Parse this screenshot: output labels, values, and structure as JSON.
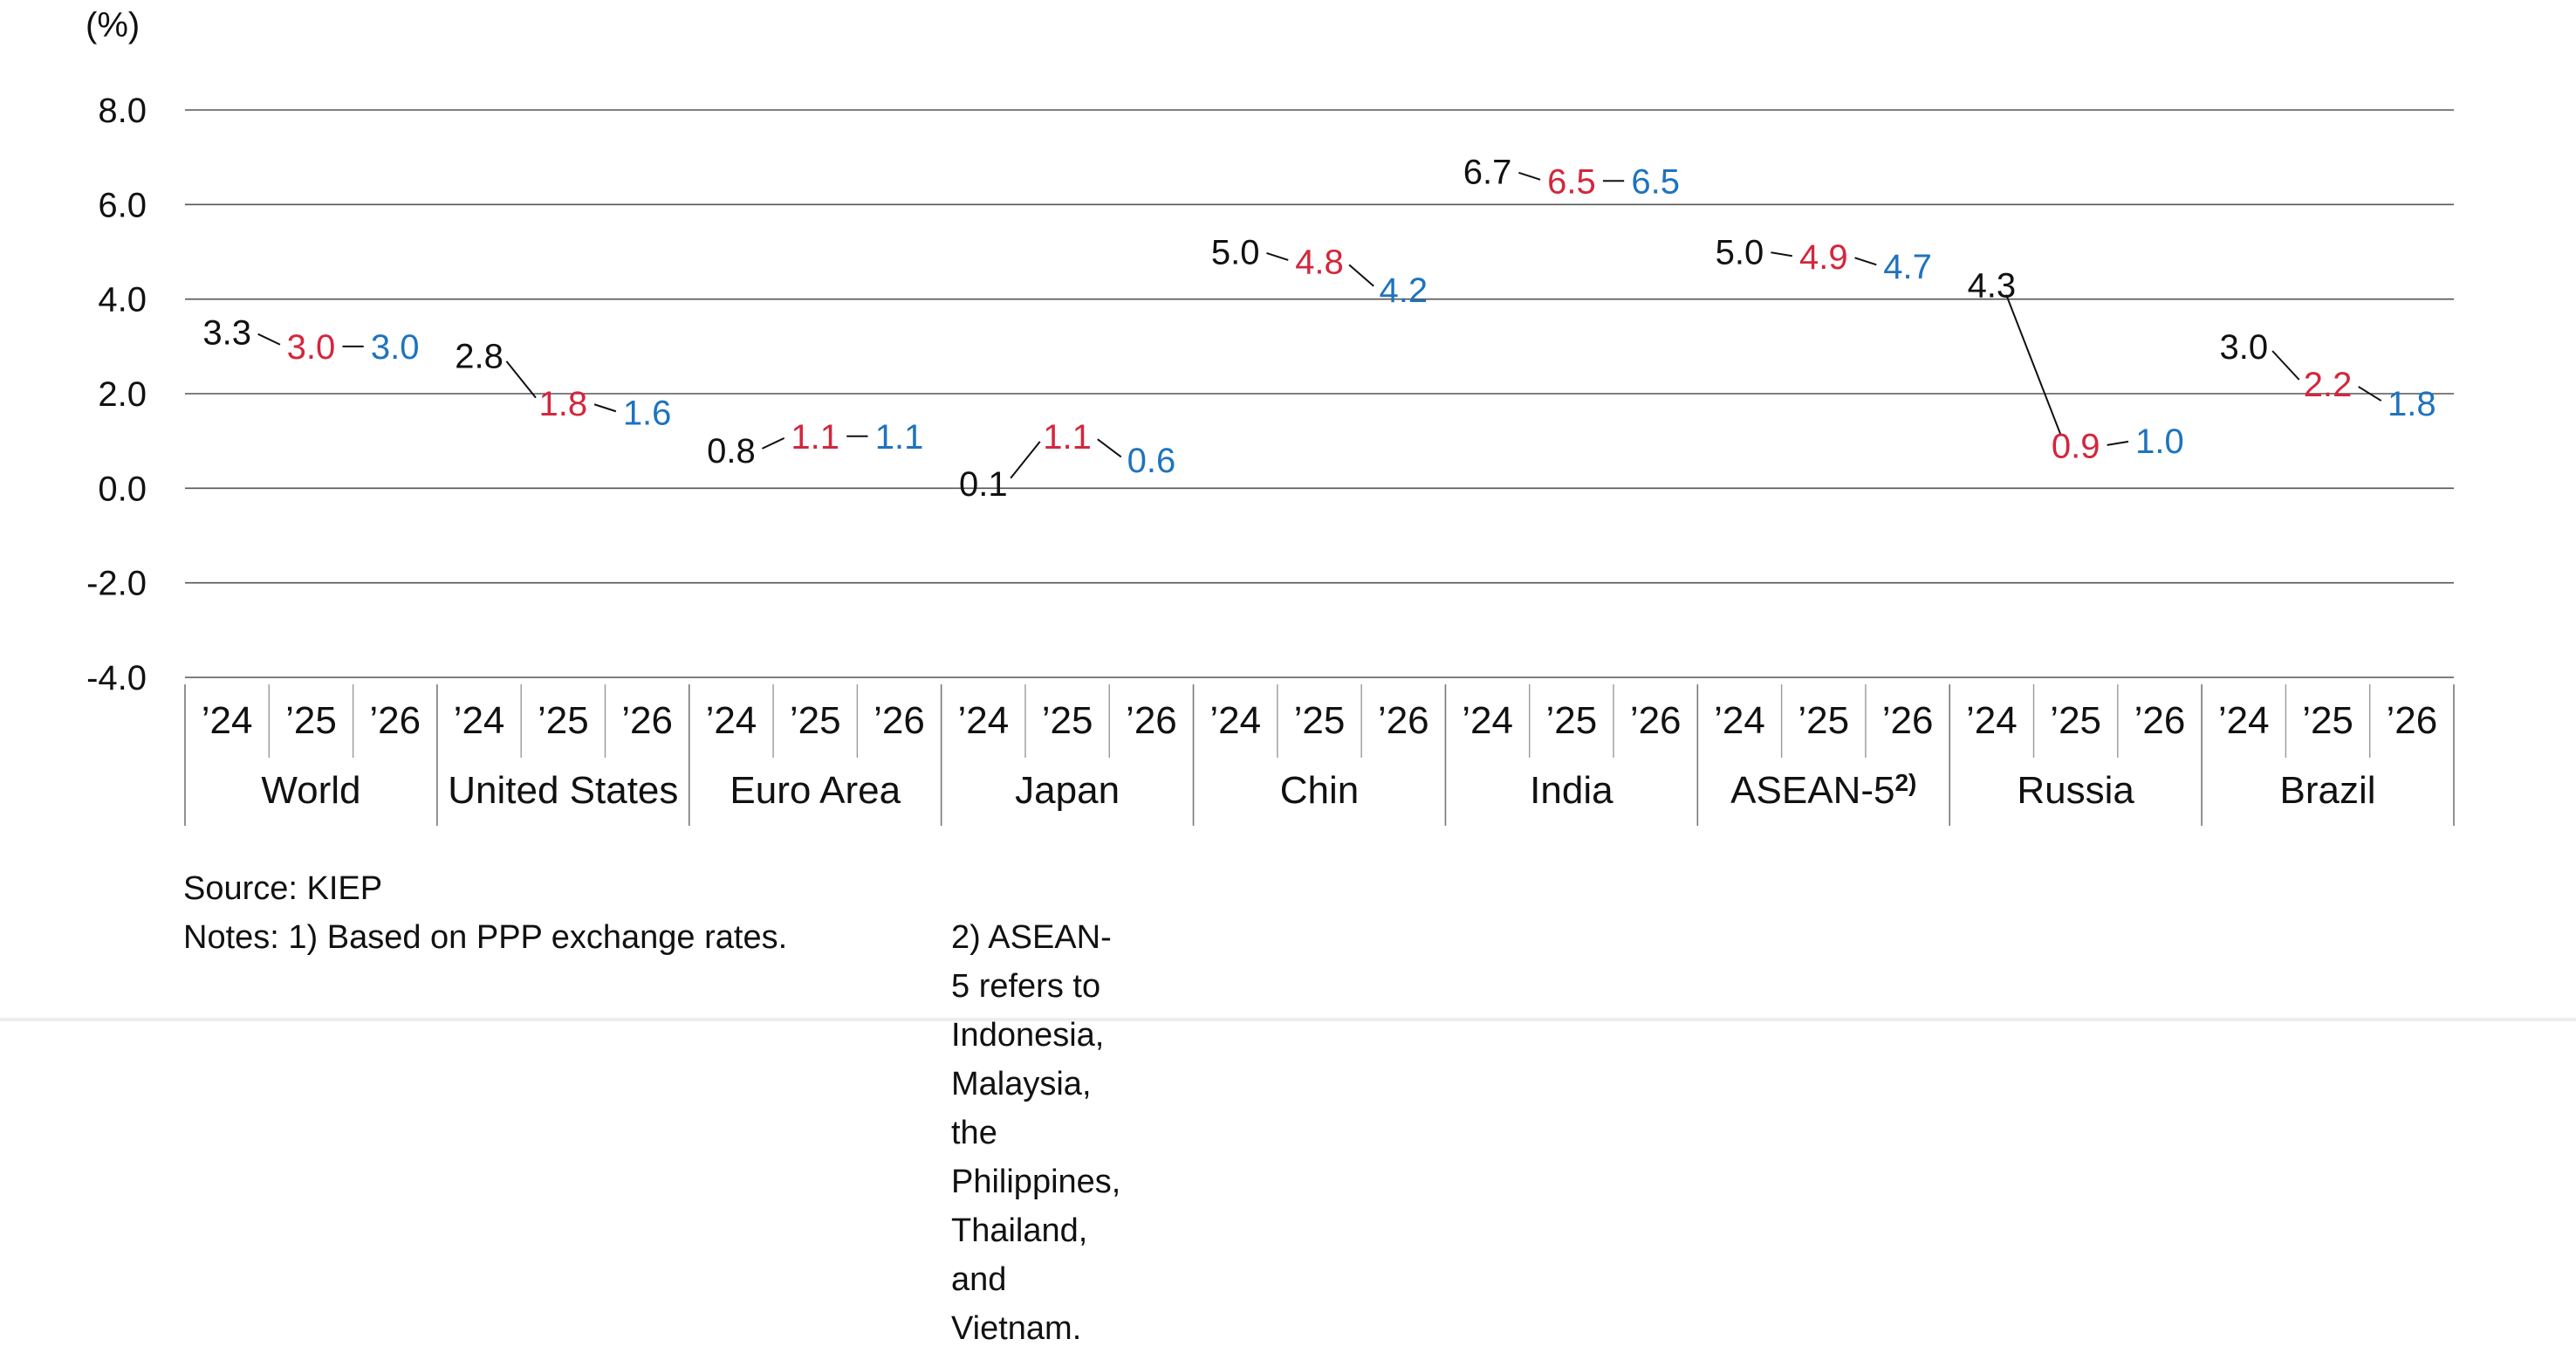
{
  "chart_data": {
    "type": "line",
    "unit_label": "(%)",
    "ylim": [
      -4.0,
      8.0
    ],
    "yticks": [
      "8.0",
      "6.0",
      "4.0",
      "2.0",
      "0.0",
      "-2.0",
      "-4.0"
    ],
    "ytick_values": [
      8,
      6,
      4,
      2,
      0,
      -2,
      -4
    ],
    "x_sublabels": [
      "’24",
      "’25",
      "’26"
    ],
    "categories": [
      "World",
      "United States",
      "Euro Area",
      "Japan",
      "Chin",
      "India",
      "ASEAN-5",
      "Russia",
      "Brazil"
    ],
    "category_superscripts": [
      "",
      "",
      "",
      "",
      "",
      "",
      "2)",
      "",
      ""
    ],
    "series": [
      {
        "year": "’24",
        "color": "#111111",
        "values": [
          3.3,
          2.8,
          0.8,
          0.1,
          5.0,
          6.7,
          5.0,
          4.3,
          3.0
        ],
        "labels": [
          "3.3",
          "2.8",
          "0.8",
          "0.1",
          "5.0",
          "6.7",
          "5.0",
          "4.3",
          "3.0"
        ]
      },
      {
        "year": "’25",
        "color": "#d4263c",
        "values": [
          3.0,
          1.8,
          1.1,
          1.1,
          4.8,
          6.5,
          4.9,
          0.9,
          2.2
        ],
        "labels": [
          "3.0",
          "1.8",
          "1.1",
          "1.1",
          "4.8",
          "6.5",
          "4.9",
          "0.9",
          "2.2"
        ]
      },
      {
        "year": "’26",
        "color": "#1e73be",
        "values": [
          3.0,
          1.6,
          1.1,
          0.6,
          4.2,
          6.5,
          4.7,
          1.0,
          1.8
        ],
        "labels": [
          "3.0",
          "1.6",
          "1.1",
          "0.6",
          "4.2",
          "6.5",
          "4.7",
          "1.0",
          "1.8"
        ]
      }
    ],
    "grid": true,
    "gridline_color": "#555555"
  },
  "source": "Source: KIEP",
  "note1": "Notes: 1) Based on PPP exchange rates.",
  "note2": "2) ASEAN-5 refers to Indonesia, Malaysia, the Philippines, Thailand, and Vietnam."
}
